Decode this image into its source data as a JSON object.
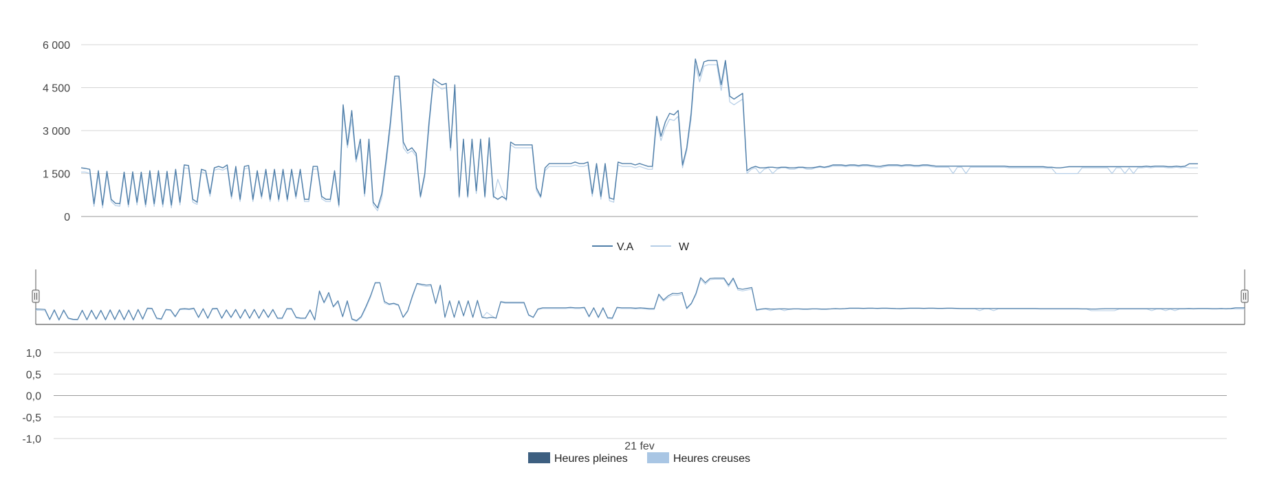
{
  "chart_data": [
    {
      "type": "line",
      "ylim": [
        0,
        6000
      ],
      "yticks": [
        "0",
        "1 500",
        "3 000",
        "4 500",
        "6 000"
      ],
      "ytick_values": [
        0,
        1500,
        3000,
        4500,
        6000
      ],
      "grid": true,
      "legend": "bottom-center",
      "series": [
        {
          "name": "V.A",
          "color": "#4f7ea8",
          "values": [
            1700,
            1680,
            1650,
            450,
            1600,
            400,
            1580,
            600,
            460,
            450,
            1550,
            420,
            1560,
            500,
            1550,
            420,
            1600,
            450,
            1600,
            430,
            1580,
            400,
            1650,
            500,
            1800,
            1780,
            600,
            500,
            1650,
            1600,
            800,
            1700,
            1750,
            1700,
            1800,
            700,
            1750,
            600,
            1750,
            1780,
            600,
            1600,
            700,
            1650,
            600,
            1650,
            600,
            1650,
            600,
            1650,
            700,
            1650,
            600,
            600,
            1750,
            1750,
            700,
            600,
            600,
            1600,
            400,
            3900,
            2500,
            3700,
            2000,
            2700,
            800,
            2700,
            500,
            300,
            800,
            2000,
            3300,
            4900,
            4900,
            2600,
            2300,
            2400,
            2200,
            700,
            1500,
            3300,
            4800,
            4700,
            4600,
            4650,
            2400,
            4600,
            700,
            2700,
            700,
            2700,
            900,
            2700,
            700,
            2750,
            700,
            600,
            700,
            600,
            2600,
            2500,
            2500,
            2500,
            2500,
            2500,
            1000,
            700,
            1700,
            1850,
            1850,
            1850,
            1850,
            1850,
            1850,
            1900,
            1850,
            1850,
            1900,
            800,
            1850,
            700,
            1850,
            650,
            600,
            1900,
            1850,
            1850,
            1850,
            1800,
            1850,
            1800,
            1750,
            1750,
            3500,
            2800,
            3300,
            3600,
            3550,
            3700,
            1800,
            2400,
            3600,
            5500,
            4900,
            5400,
            5450,
            5450,
            5450,
            4600,
            5450,
            4200,
            4100,
            4200,
            4300,
            1600,
            1700,
            1750,
            1700,
            1700,
            1720,
            1720,
            1700,
            1720,
            1720,
            1700,
            1700,
            1720,
            1720,
            1700,
            1700,
            1720,
            1750,
            1720,
            1750,
            1800,
            1800,
            1800,
            1780,
            1800,
            1800,
            1780,
            1800,
            1800,
            1780,
            1760,
            1750,
            1780,
            1800,
            1800,
            1800,
            1780,
            1800,
            1800,
            1780,
            1780,
            1800,
            1800,
            1780,
            1760,
            1760,
            1760,
            1760,
            1760,
            1760,
            1760,
            1760,
            1760,
            1760,
            1760,
            1760,
            1760,
            1760,
            1760,
            1760,
            1760,
            1740,
            1740,
            1740,
            1740,
            1740,
            1740,
            1740,
            1740,
            1740,
            1720,
            1720,
            1700,
            1700,
            1720,
            1740,
            1740,
            1740,
            1740,
            1740,
            1740,
            1740,
            1740,
            1740,
            1740,
            1740,
            1740,
            1740,
            1740,
            1740,
            1740,
            1740,
            1740,
            1760,
            1740,
            1760,
            1760,
            1760,
            1740,
            1740,
            1760,
            1740,
            1760,
            1840,
            1840,
            1840
          ]
        },
        {
          "name": "W",
          "color": "#b4cde6",
          "values": [
            1550,
            1550,
            1500,
            350,
            1480,
            300,
            1460,
            520,
            380,
            360,
            1450,
            330,
            1460,
            400,
            1440,
            330,
            1480,
            350,
            1490,
            330,
            1480,
            300,
            1560,
            400,
            1700,
            1680,
            500,
            420,
            1560,
            1500,
            700,
            1620,
            1660,
            1620,
            1700,
            620,
            1660,
            520,
            1660,
            1700,
            520,
            1520,
            620,
            1560,
            520,
            1560,
            520,
            1560,
            520,
            1560,
            620,
            1560,
            520,
            520,
            1650,
            1660,
            620,
            520,
            520,
            1500,
            330,
            3700,
            2400,
            3400,
            1900,
            2500,
            700,
            2500,
            400,
            200,
            650,
            1800,
            3100,
            4800,
            4850,
            2400,
            2200,
            2300,
            2100,
            650,
            1400,
            3100,
            4700,
            4550,
            4450,
            4500,
            2300,
            4400,
            650,
            2600,
            650,
            2600,
            800,
            2600,
            650,
            2600,
            650,
            1300,
            900,
            550,
            2500,
            2400,
            2400,
            2400,
            2400,
            2400,
            900,
            650,
            1600,
            1750,
            1750,
            1750,
            1750,
            1750,
            1750,
            1800,
            1750,
            1750,
            1800,
            700,
            1750,
            600,
            1750,
            550,
            500,
            1800,
            1750,
            1750,
            1750,
            1700,
            1750,
            1700,
            1650,
            1650,
            3300,
            2650,
            3100,
            3400,
            3350,
            3500,
            1700,
            2300,
            3400,
            5300,
            4700,
            5250,
            5300,
            5300,
            5300,
            4400,
            5300,
            4000,
            3900,
            4000,
            4100,
            1500,
            1650,
            1700,
            1500,
            1650,
            1700,
            1500,
            1650,
            1700,
            1700,
            1650,
            1650,
            1700,
            1700,
            1650,
            1650,
            1700,
            1720,
            1700,
            1720,
            1760,
            1760,
            1760,
            1740,
            1760,
            1760,
            1740,
            1760,
            1760,
            1740,
            1720,
            1700,
            1740,
            1760,
            1760,
            1760,
            1740,
            1760,
            1760,
            1740,
            1740,
            1760,
            1760,
            1740,
            1720,
            1720,
            1720,
            1720,
            1500,
            1720,
            1720,
            1500,
            1720,
            1720,
            1720,
            1720,
            1720,
            1720,
            1720,
            1720,
            1720,
            1700,
            1700,
            1700,
            1700,
            1700,
            1700,
            1700,
            1700,
            1700,
            1680,
            1680,
            1500,
            1500,
            1500,
            1500,
            1500,
            1500,
            1700,
            1700,
            1700,
            1700,
            1700,
            1700,
            1700,
            1500,
            1700,
            1700,
            1500,
            1700,
            1500,
            1700,
            1700,
            1720,
            1700,
            1720,
            1720,
            1720,
            1700,
            1700,
            1720,
            1700,
            1720,
            1700,
            1700,
            1700
          ]
        }
      ]
    },
    {
      "type": "bar",
      "ylim": [
        -1.0,
        1.0
      ],
      "yticks": [
        "-1,0",
        "-0,5",
        "0,0",
        "0,5",
        "1,0"
      ],
      "ytick_values": [
        -1.0,
        -0.5,
        0.0,
        0.5,
        1.0
      ],
      "grid": true,
      "x_label_text": "21 fev",
      "legend": "bottom-center",
      "series": [
        {
          "name": "Heures pleines",
          "color": "#3d5f80",
          "values": []
        },
        {
          "name": "Heures creuses",
          "color": "#a9c6e4",
          "values": []
        }
      ]
    }
  ]
}
